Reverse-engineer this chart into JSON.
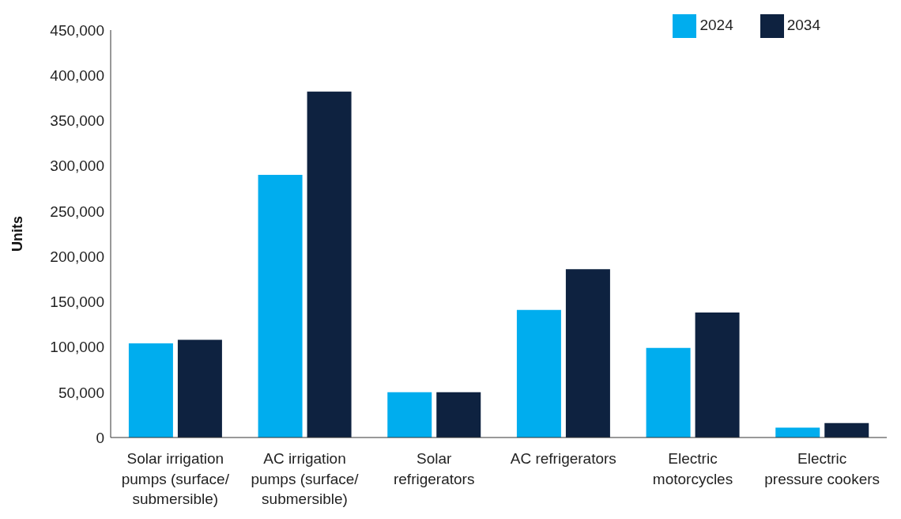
{
  "chart_data": {
    "type": "bar",
    "ylabel": "Units",
    "categories": [
      "Solar irrigation pumps (surface/ submersible)",
      "AC irrigation pumps (surface/ submersible)",
      "Solar refrigerators",
      "AC refrigerators",
      "Electric motorcycles",
      "Electric pressure cookers"
    ],
    "series": [
      {
        "name": "2024",
        "color": "#00adee",
        "values": [
          104000,
          290000,
          50000,
          141000,
          99000,
          11000
        ]
      },
      {
        "name": "2034",
        "color": "#0e2240",
        "values": [
          108000,
          382000,
          50000,
          186000,
          138000,
          16000
        ]
      }
    ],
    "ylim": [
      0,
      450000
    ],
    "yticks": [
      0,
      {
        "value": 50000,
        "label": "50,000"
      },
      {
        "value": 100000,
        "label": "100,000"
      },
      {
        "value": 150000,
        "label": "150,000"
      },
      {
        "value": 200000,
        "label": "200,000"
      },
      {
        "value": 250000,
        "label": "250,000"
      },
      {
        "value": 300000,
        "label": "300,000"
      },
      {
        "value": 350000,
        "label": "350,000"
      },
      {
        "value": 400000,
        "label": "400,000"
      },
      {
        "value": 450000,
        "label": "450,000"
      }
    ],
    "grid": false,
    "legend": "top right"
  }
}
